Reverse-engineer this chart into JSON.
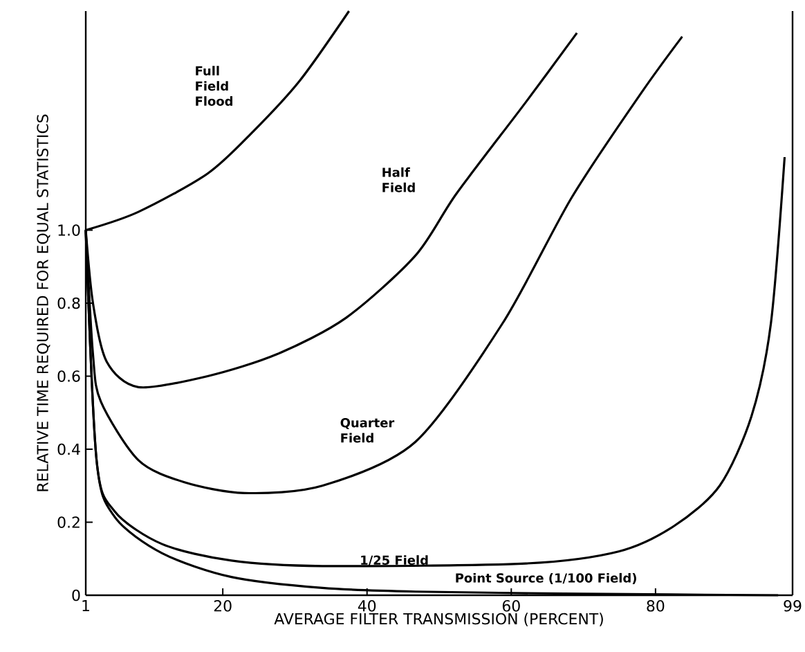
{
  "chart_data": {
    "type": "line",
    "xlabel": "AVERAGE FILTER TRANSMISSION (PERCENT)",
    "ylabel": "RELATIVE TIME REQUIRED FOR EQUAL STATISTICS",
    "xlim": [
      1,
      99
    ],
    "ylim": [
      0,
      1.6
    ],
    "xticks": [
      1,
      20,
      40,
      60,
      80,
      99
    ],
    "yticks": [
      0,
      0.2,
      0.4,
      0.6,
      0.8,
      {
        "value": 1,
        "label": "1.0"
      }
    ],
    "marker": "none",
    "line_style": "solid",
    "series": [
      {
        "name": "Full Field Flood",
        "color": "#000000",
        "x": [
          1,
          8.3,
          17.9,
          24.2,
          30.7,
          37.5
        ],
        "values": [
          1.0,
          1.05,
          1.155,
          1.27,
          1.41,
          1.6
        ]
      },
      {
        "name": "Half Field",
        "color": "#000000",
        "x": [
          1,
          2,
          3.9,
          8.3,
          17.9,
          27.5,
          37.1,
          46.7,
          52.4,
          62,
          69.1
        ],
        "values": [
          1.0,
          0.8,
          0.64,
          0.57,
          0.6,
          0.66,
          0.76,
          0.93,
          1.1,
          1.35,
          1.54
        ]
      },
      {
        "name": "Quarter Field",
        "color": "#000000",
        "x": [
          1,
          2,
          3.1,
          8.3,
          14.6,
          23,
          33.8,
          46.7,
          58.8,
          68.4,
          78,
          83.7
        ],
        "values": [
          1.0,
          0.66,
          0.53,
          0.37,
          0.31,
          0.28,
          0.3,
          0.42,
          0.745,
          1.09,
          1.375,
          1.53
        ]
      },
      {
        "name": "1/25 Field",
        "color": "#000000",
        "x": [
          1,
          2.5,
          5,
          11.6,
          21.2,
          33.8,
          62,
          74.9,
          82.6,
          88.9,
          93.3,
          96,
          97.9
        ],
        "values": [
          1.0,
          0.37,
          0.23,
          0.14,
          0.095,
          0.08,
          0.087,
          0.12,
          0.19,
          0.3,
          0.49,
          0.745,
          1.2
        ]
      },
      {
        "name": "Point Source (1/100 Field)",
        "color": "#000000",
        "x": [
          1,
          2.5,
          5,
          11.6,
          21.2,
          33.8,
          46.7,
          70,
          97
        ],
        "values": [
          1.0,
          0.37,
          0.215,
          0.115,
          0.05,
          0.02,
          0.01,
          0.004,
          0.0
        ]
      }
    ]
  }
}
